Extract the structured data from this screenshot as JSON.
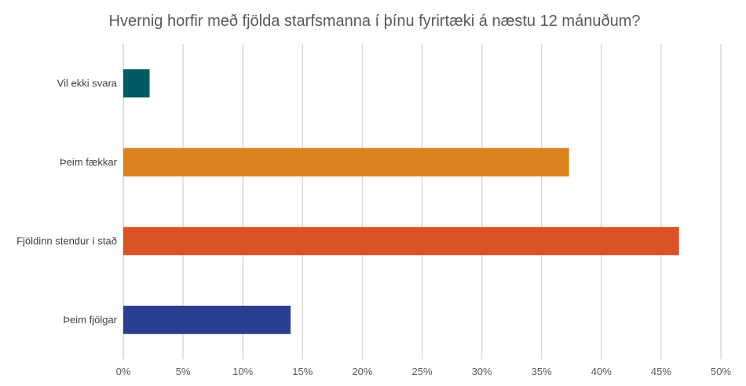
{
  "chart_data": {
    "type": "bar",
    "orientation": "horizontal",
    "title": "Hvernig horfir með fjölda starfsmanna í þínu fyrirtæki á næstu 12 mánuðum?",
    "xlabel": "",
    "ylabel": "",
    "categories": [
      "Vil ekki svara",
      "Þeim fækkar",
      "Fjöldinn stendur í stað",
      "Þeim fjölgar"
    ],
    "values": [
      2.2,
      37.3,
      46.5,
      14.0
    ],
    "bar_colors": [
      "#005a66",
      "#d9821e",
      "#d95326",
      "#2a3d8f"
    ],
    "xlim": [
      0,
      50
    ],
    "x_ticks": [
      0,
      5,
      10,
      15,
      20,
      25,
      30,
      35,
      40,
      45,
      50
    ],
    "x_tick_labels": [
      "0%",
      "5%",
      "10%",
      "15%",
      "20%",
      "25%",
      "30%",
      "35%",
      "40%",
      "45%",
      "50%"
    ],
    "grid": true,
    "legend": "none"
  }
}
